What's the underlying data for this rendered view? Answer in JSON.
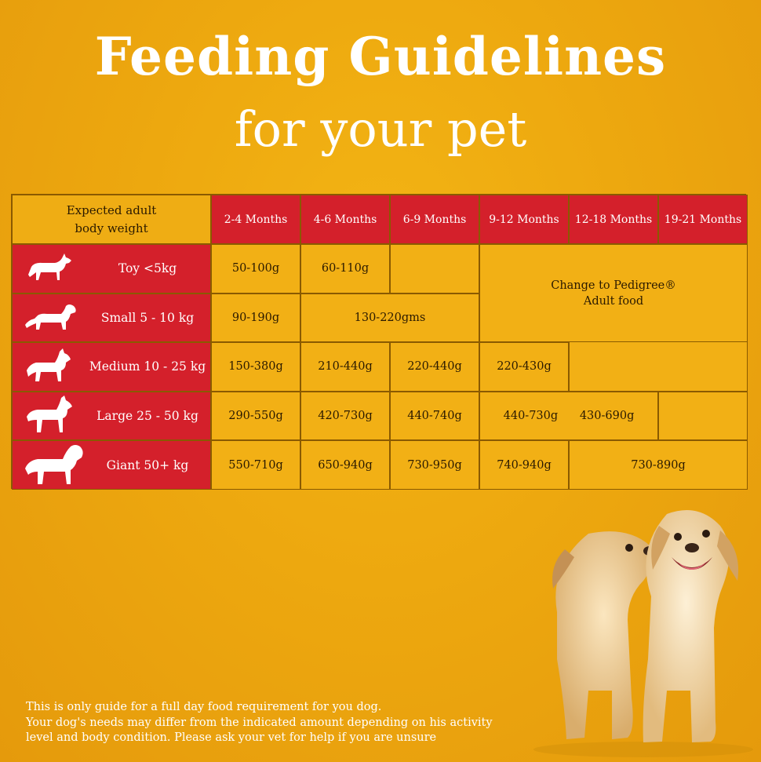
{
  "header": {
    "title": "Feeding Guidelines",
    "subtitle": "for your pet"
  },
  "table": {
    "corner_line1": "Expected adult",
    "corner_line2": "body weight",
    "columns": [
      "2-4 Months",
      "4-6 Months",
      "6-9 Months",
      "9-12 Months",
      "12-18 Months",
      "19-21 Months"
    ],
    "rows": [
      {
        "label": "Toy <5kg",
        "icon": "toy-dog-icon"
      },
      {
        "label": "Small 5 - 10 kg",
        "icon": "small-dog-icon"
      },
      {
        "label": "Medium 10 - 25 kg",
        "icon": "medium-dog-icon"
      },
      {
        "label": "Large 25 - 50 kg",
        "icon": "large-dog-icon"
      },
      {
        "label": "Giant 50+ kg",
        "icon": "giant-dog-icon"
      }
    ],
    "cells": {
      "toy_2_4": "50-100g",
      "toy_4_6": "60-110g",
      "small_2_4": "90-190g",
      "small_4_9": "130-220gms",
      "medium_2_4": "150-380g",
      "medium_4_6": "210-440g",
      "medium_6_9": "220-440g",
      "medium_9_12": "220-430g",
      "large_2_4": "290-550g",
      "large_4_6": "420-730g",
      "large_6_9": "440-740g",
      "large_9_18": "440-730g      430-690g",
      "giant_2_4": "550-710g",
      "giant_4_6": "650-940g",
      "giant_6_9": "730-950g",
      "giant_9_12": "740-940g",
      "giant_12_21": "730-890g"
    },
    "change_note_line1": "Change to Pedigree®",
    "change_note_line2": "Adult food"
  },
  "footnote": {
    "line1": "This is only guide for a full day food requirement for you dog.",
    "line2": "Your dog's needs may differ from the indicated amount depending on his activity",
    "line3": "level and body condition. Please ask your vet for help if you are unsure"
  },
  "colors": {
    "background": "#eda80f",
    "header_red": "#d4202b",
    "cell_yellow": "#f2b015",
    "text_dark": "#2b1a00",
    "white": "#ffffff"
  }
}
